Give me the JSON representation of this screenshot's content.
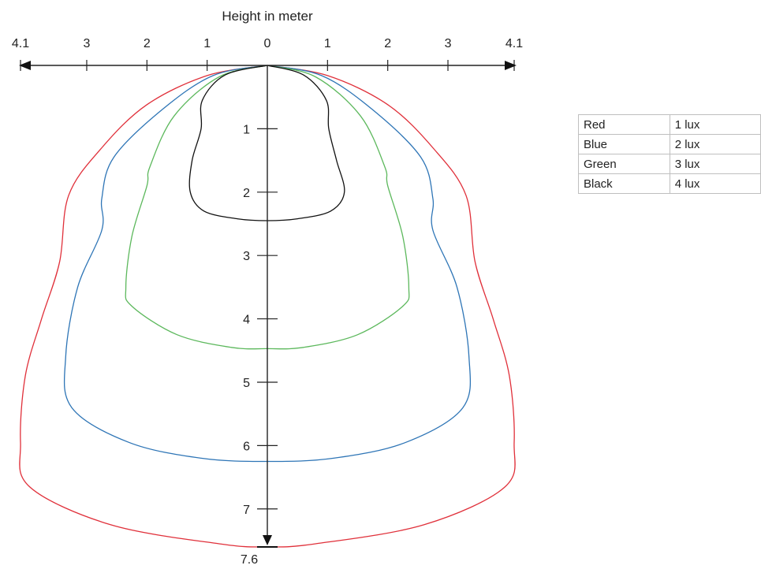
{
  "chart_data": {
    "type": "line",
    "title": "Height in meter",
    "x_axis": {
      "ticks_left": [
        "4.1",
        "3",
        "2",
        "1"
      ],
      "tick_center": "0",
      "ticks_right": [
        "1",
        "2",
        "3",
        "4.1"
      ],
      "range": [
        -4.1,
        4.1
      ]
    },
    "y_axis": {
      "ticks": [
        "1",
        "2",
        "3",
        "4",
        "5",
        "6",
        "7"
      ],
      "end_label": "7.6",
      "range": [
        0,
        7.6
      ]
    },
    "series": [
      {
        "name": "Red",
        "value": "1 lux",
        "color": "#e0303a",
        "points": [
          [
            0,
            0
          ],
          [
            1,
            0.16
          ],
          [
            2,
            0.62
          ],
          [
            2.75,
            1.3
          ],
          [
            3.3,
            2.05
          ],
          [
            3.45,
            3.1
          ],
          [
            3.75,
            4.0
          ],
          [
            4.02,
            4.9
          ],
          [
            4.1,
            5.95
          ],
          [
            3.95,
            6.65
          ],
          [
            2.6,
            7.25
          ],
          [
            0.8,
            7.55
          ],
          [
            0,
            7.6
          ],
          [
            -0.8,
            7.55
          ],
          [
            -2.6,
            7.25
          ],
          [
            -3.95,
            6.65
          ],
          [
            -4.1,
            5.95
          ],
          [
            -4.02,
            4.9
          ],
          [
            -3.75,
            4.0
          ],
          [
            -3.45,
            3.1
          ],
          [
            -3.3,
            2.05
          ],
          [
            -2.75,
            1.3
          ],
          [
            -2.0,
            0.62
          ],
          [
            -1.0,
            0.16
          ],
          [
            0,
            0
          ]
        ]
      },
      {
        "name": "Blue",
        "value": "2 lux",
        "color": "#2e75b6",
        "points": [
          [
            0,
            0
          ],
          [
            0.9,
            0.16
          ],
          [
            1.75,
            0.7
          ],
          [
            2.55,
            1.45
          ],
          [
            2.75,
            2.1
          ],
          [
            2.75,
            2.6
          ],
          [
            3.15,
            3.5
          ],
          [
            3.35,
            4.6
          ],
          [
            3.25,
            5.4
          ],
          [
            2.3,
            5.95
          ],
          [
            1.1,
            6.2
          ],
          [
            0,
            6.25
          ],
          [
            -1.1,
            6.2
          ],
          [
            -2.3,
            5.95
          ],
          [
            -3.25,
            5.4
          ],
          [
            -3.35,
            4.6
          ],
          [
            -3.15,
            3.5
          ],
          [
            -2.75,
            2.6
          ],
          [
            -2.75,
            2.1
          ],
          [
            -2.55,
            1.45
          ],
          [
            -1.75,
            0.7
          ],
          [
            -0.9,
            0.16
          ],
          [
            0,
            0
          ]
        ]
      },
      {
        "name": "Green",
        "value": "3 lux",
        "color": "#5cb85c",
        "points": [
          [
            0,
            0
          ],
          [
            0.8,
            0.18
          ],
          [
            1.55,
            0.8
          ],
          [
            1.95,
            1.6
          ],
          [
            2.0,
            1.9
          ],
          [
            2.25,
            2.7
          ],
          [
            2.35,
            3.5
          ],
          [
            2.25,
            3.8
          ],
          [
            1.5,
            4.25
          ],
          [
            0.6,
            4.45
          ],
          [
            0,
            4.47
          ],
          [
            -0.6,
            4.45
          ],
          [
            -1.5,
            4.25
          ],
          [
            -2.25,
            3.8
          ],
          [
            -2.35,
            3.5
          ],
          [
            -2.25,
            2.7
          ],
          [
            -2.0,
            1.9
          ],
          [
            -1.95,
            1.6
          ],
          [
            -1.55,
            0.8
          ],
          [
            -0.8,
            0.18
          ],
          [
            0,
            0
          ]
        ]
      },
      {
        "name": "Black",
        "value": "4 lux",
        "color": "#111111",
        "points": [
          [
            0,
            0
          ],
          [
            0.6,
            0.15
          ],
          [
            0.98,
            0.55
          ],
          [
            1.02,
            1.0
          ],
          [
            1.15,
            1.5
          ],
          [
            1.28,
            2.0
          ],
          [
            1.05,
            2.3
          ],
          [
            0.5,
            2.42
          ],
          [
            0,
            2.45
          ],
          [
            -0.5,
            2.42
          ],
          [
            -1.05,
            2.3
          ],
          [
            -1.28,
            2.0
          ],
          [
            -1.25,
            1.5
          ],
          [
            -1.1,
            1.0
          ],
          [
            -1.08,
            0.55
          ],
          [
            -0.7,
            0.15
          ],
          [
            0,
            0
          ]
        ]
      }
    ],
    "legend_position": "right",
    "grid": false
  }
}
